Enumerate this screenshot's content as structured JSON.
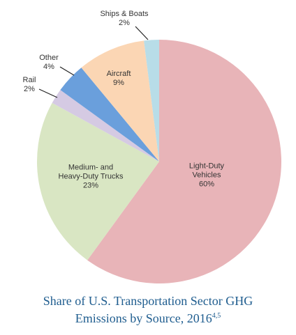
{
  "chart_data": {
    "type": "pie",
    "title": "Share of U.S. Transportation Sector GHG Emissions by Source, 2016",
    "title_superscript": "4,5",
    "categories": [
      "Light-Duty Vehicles",
      "Medium- and Heavy-Duty Trucks",
      "Rail",
      "Other",
      "Aircraft",
      "Ships & Boats"
    ],
    "values": [
      60,
      23,
      2,
      4,
      9,
      2
    ],
    "value_labels": [
      "60%",
      "23%",
      "2%",
      "4%",
      "9%",
      "2%"
    ],
    "colors": [
      "#e8b4b8",
      "#d9e6c3",
      "#d5cae3",
      "#6a9fdc",
      "#fbd6b4",
      "#b8dde8"
    ]
  }
}
